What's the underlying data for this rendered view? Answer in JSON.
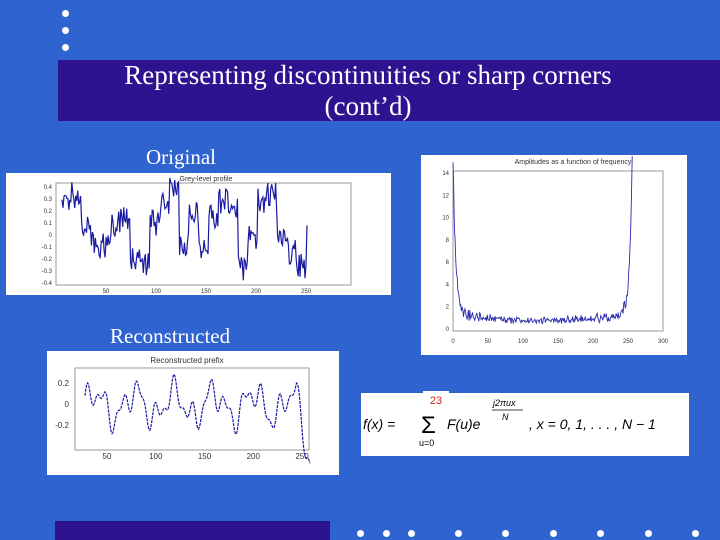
{
  "slide": {
    "title_line1": "Representing discontinuities or sharp corners",
    "title_line2": "(cont’d)",
    "label_original": "Original",
    "label_reconstructed": "Reconstructed",
    "slide_number": "23",
    "colors": {
      "background": "#2f63cf",
      "band": "#2e1390",
      "plot": "#1a1aa0"
    }
  },
  "charts": {
    "original": {
      "title": "Grey-level profile",
      "y_ticks": [
        "0.4",
        "0.3",
        "0.2",
        "0.1",
        "0",
        "-0.1",
        "-0.2",
        "-0.3",
        "-0.4"
      ],
      "x_ticks": [
        "50",
        "100",
        "150",
        "200",
        "250"
      ]
    },
    "amplitudes": {
      "title": "Amplitudes as a function of frequency",
      "y_ticks": [
        "14",
        "12",
        "10",
        "8",
        "6",
        "4",
        "2",
        "0"
      ],
      "x_ticks": [
        "0",
        "50",
        "100",
        "150",
        "200",
        "250",
        "300"
      ]
    },
    "reconstructed": {
      "title": "Reconstructed prefix",
      "y_ticks": [
        "0.2",
        "0",
        "-0.2"
      ],
      "x_ticks": [
        "50",
        "100",
        "150",
        "200",
        "250"
      ]
    }
  },
  "formula": {
    "lhs": "f(x) =",
    "sum_bottom": "u=0",
    "term": "F(u)e",
    "exponent_num": "j2πux",
    "exponent_den": "N",
    "rhs": ", x = 0, 1, . . . , N − 1"
  }
}
